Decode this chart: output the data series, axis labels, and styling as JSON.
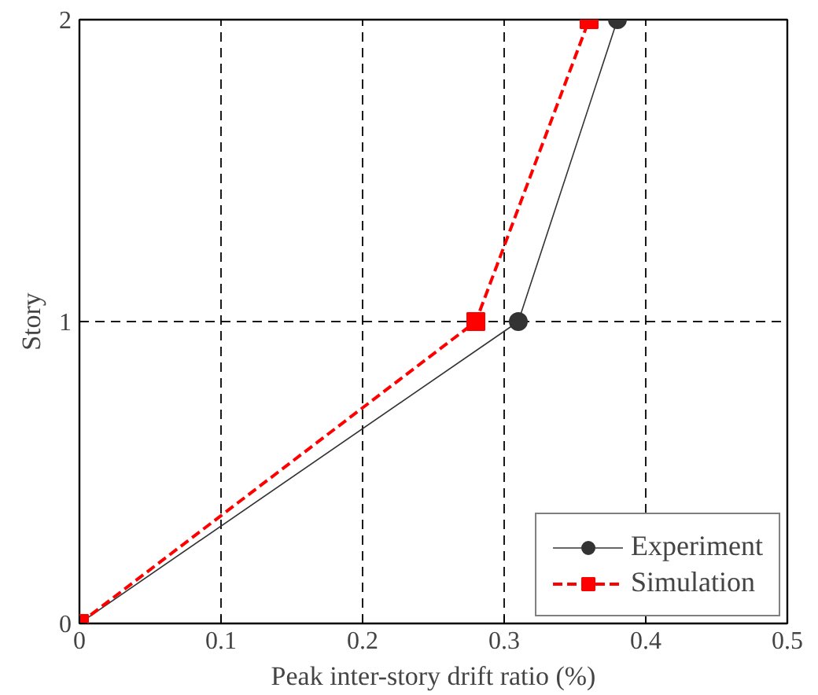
{
  "chart_data": {
    "type": "line",
    "xlabel": "Peak inter-story drift ratio (%)",
    "ylabel": "Story",
    "xlim": [
      0,
      0.5
    ],
    "xticks": [
      0,
      0.1,
      0.2,
      0.3,
      0.4,
      0.5
    ],
    "ylim": [
      0,
      2
    ],
    "yticks": [
      0,
      1,
      2
    ],
    "grid": true,
    "legend": "bottom right",
    "series": [
      {
        "name": "Experiment",
        "color": "#333333",
        "marker": "circle",
        "line_style": "solid",
        "x": [
          0,
          0.31,
          0.38
        ],
        "values": [
          0,
          1,
          2
        ]
      },
      {
        "name": "Simulation",
        "color": "#ff0000",
        "marker": "square",
        "line_style": "dashed",
        "x": [
          0,
          0.28,
          0.36
        ],
        "values": [
          0,
          1,
          2
        ]
      }
    ]
  }
}
